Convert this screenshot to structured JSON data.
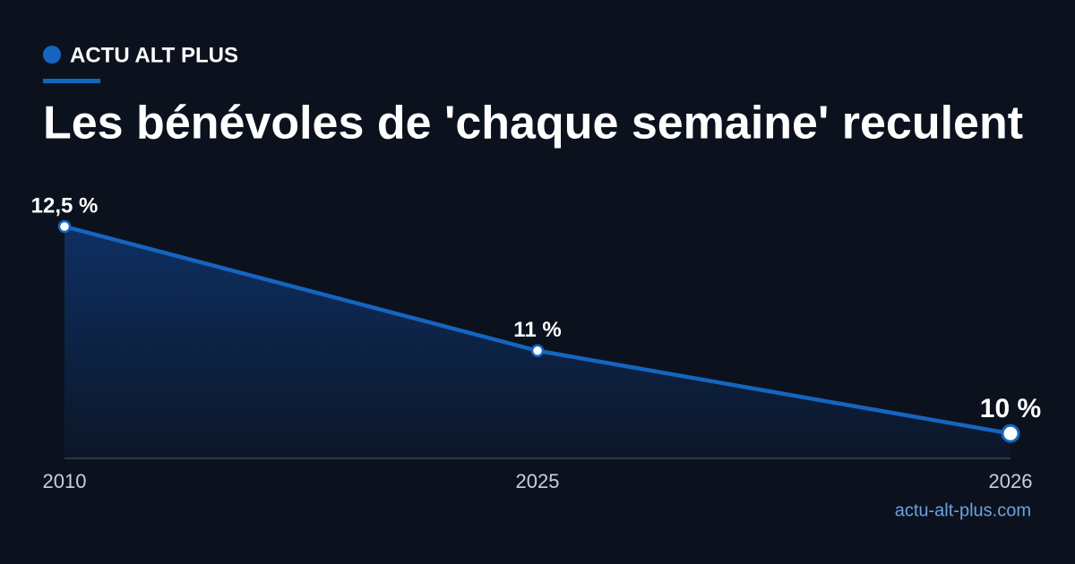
{
  "brand": "ACTU ALT PLUS",
  "footer": "actu-alt-plus.com",
  "chart_data": {
    "type": "area",
    "title": "Les bénévoles de 'chaque semaine' reculent",
    "categories": [
      "2010",
      "2025",
      "2026"
    ],
    "values": [
      12.5,
      11,
      10
    ],
    "value_labels": [
      "12,5 %",
      "11 %",
      "10 %"
    ],
    "color": "#1565c0",
    "ylim": [
      9.7,
      12.5
    ]
  }
}
